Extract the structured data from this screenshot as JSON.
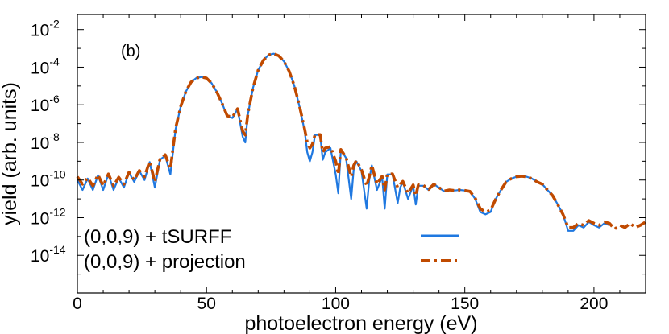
{
  "chart_data": {
    "type": "line",
    "panel_label": "(b)",
    "xlabel": "photoelectron energy (eV)",
    "ylabel": "yield (arb. units)",
    "xlim": [
      0,
      220
    ],
    "ylim_log10": [
      -16,
      -1.2
    ],
    "y_scale": "log",
    "x_ticks": [
      0,
      50,
      100,
      150,
      200
    ],
    "y_ticks": [
      {
        "base": "10",
        "exp": "-2",
        "value": 0.01
      },
      {
        "base": "10",
        "exp": "-4",
        "value": 0.0001
      },
      {
        "base": "10",
        "exp": "-6",
        "value": 1e-06
      },
      {
        "base": "10",
        "exp": "-8",
        "value": 1e-08
      },
      {
        "base": "10",
        "exp": "-10",
        "value": 1e-10
      },
      {
        "base": "10",
        "exp": "-12",
        "value": 1e-12
      },
      {
        "base": "10",
        "exp": "-14",
        "value": 1e-14
      }
    ],
    "grid": false,
    "legend_position": "bottom-left",
    "series": [
      {
        "name": "(0,0,9) + tSURFF",
        "color": "#1f78e0",
        "style": "solid",
        "x": [
          0,
          2,
          4,
          6,
          8,
          10,
          12,
          14,
          16,
          18,
          20,
          22,
          24,
          26,
          28,
          30,
          32,
          34,
          36,
          38,
          40,
          42,
          44,
          46,
          48,
          50,
          52,
          54,
          56,
          58,
          60,
          62,
          64,
          65,
          66,
          68,
          70,
          72,
          74,
          76,
          78,
          80,
          82,
          84,
          86,
          88,
          89,
          90,
          91,
          92,
          94,
          95,
          96,
          98,
          100,
          101,
          102,
          104,
          106,
          107,
          108,
          110,
          112,
          113,
          114,
          116,
          118,
          119,
          120,
          122,
          124,
          125,
          126,
          128,
          130,
          131,
          132,
          134,
          136,
          138,
          140,
          142,
          144,
          146,
          148,
          150,
          152,
          154,
          156,
          158,
          160,
          162,
          164,
          166,
          168,
          170,
          172,
          174,
          176,
          178,
          180,
          182,
          184,
          186,
          188,
          190,
          192,
          194,
          196,
          198,
          200,
          202,
          204,
          206
        ],
        "y": [
          1e-10,
          3e-11,
          1.2e-10,
          3e-11,
          1.8e-10,
          3e-11,
          2e-10,
          3e-11,
          1.3e-10,
          4e-11,
          2.5e-10,
          8e-11,
          3e-10,
          1e-10,
          9e-10,
          4e-11,
          1.2e-09,
          2e-09,
          2e-10,
          5e-08,
          8e-07,
          5e-06,
          1.6e-05,
          2.6e-05,
          3e-05,
          2.6e-05,
          1.4e-05,
          4.8e-06,
          1.2e-06,
          2.5e-07,
          2e-07,
          6e-07,
          2e-08,
          1e-08,
          3e-07,
          8e-06,
          7e-05,
          0.00023,
          0.00045,
          0.00052,
          0.0004,
          0.0002,
          6e-05,
          1e-05,
          8e-07,
          4e-08,
          3e-09,
          1e-09,
          3e-09,
          2.5e-08,
          2.5e-08,
          1.2e-09,
          3e-09,
          5e-09,
          2e-10,
          2e-11,
          4e-09,
          1.5e-09,
          1e-11,
          4e-10,
          1e-09,
          3e-10,
          3e-12,
          1e-10,
          6e-10,
          3e-11,
          1.5e-10,
          3e-12,
          2e-10,
          2e-10,
          6e-12,
          4e-11,
          8e-11,
          1e-11,
          5e-11,
          5e-12,
          5e-11,
          5e-11,
          3e-11,
          6e-11,
          4e-11,
          2.5e-11,
          3e-11,
          2.8e-11,
          3e-11,
          2.8e-11,
          2.5e-11,
          1e-11,
          2e-12,
          1.5e-12,
          2e-12,
          1e-11,
          3e-11,
          8e-11,
          1.2e-10,
          1.5e-10,
          1.6e-10,
          1.5e-10,
          1.2e-10,
          8e-11,
          6e-11,
          3e-11,
          1.5e-11,
          5e-12,
          1.5e-12,
          2e-13,
          2e-13,
          4e-13,
          3e-13,
          6e-13,
          4e-13,
          3e-13,
          5e-13,
          4e-13
        ]
      },
      {
        "name": "(0,0,9) + projection",
        "color": "#c04a00",
        "style": "dash-dot",
        "x": [
          0,
          2,
          4,
          6,
          8,
          10,
          12,
          14,
          16,
          18,
          20,
          22,
          24,
          26,
          28,
          30,
          32,
          34,
          36,
          38,
          40,
          42,
          44,
          46,
          48,
          50,
          52,
          54,
          56,
          58,
          60,
          62,
          64,
          65,
          66,
          68,
          70,
          72,
          74,
          76,
          78,
          80,
          82,
          84,
          86,
          88,
          89,
          90,
          91,
          92,
          94,
          95,
          96,
          98,
          100,
          101,
          102,
          104,
          106,
          107,
          108,
          110,
          112,
          113,
          114,
          116,
          118,
          119,
          120,
          122,
          124,
          125,
          126,
          128,
          130,
          131,
          132,
          134,
          136,
          138,
          140,
          142,
          144,
          146,
          148,
          150,
          152,
          154,
          156,
          158,
          160,
          162,
          164,
          166,
          168,
          170,
          172,
          174,
          176,
          178,
          180,
          182,
          184,
          186,
          188,
          190,
          192,
          194,
          196,
          198,
          200,
          202,
          204,
          206,
          208,
          210,
          212,
          214,
          216,
          218,
          220
        ],
        "y": [
          1.5e-10,
          6e-11,
          1.3e-10,
          5e-11,
          1.9e-10,
          5e-11,
          2.1e-10,
          5e-11,
          1.4e-10,
          6e-11,
          2.6e-10,
          1e-10,
          3.2e-10,
          1.5e-10,
          1e-09,
          8e-11,
          1.3e-09,
          2.2e-09,
          4e-10,
          5.5e-08,
          8.2e-07,
          5.2e-06,
          1.6e-05,
          2.6e-05,
          3e-05,
          2.6e-05,
          1.4e-05,
          4.8e-06,
          1.2e-06,
          2.6e-07,
          2.2e-07,
          6.2e-07,
          4e-08,
          2.5e-08,
          3.2e-07,
          8e-06,
          7e-05,
          0.00023,
          0.00045,
          0.00052,
          0.0004,
          0.0002,
          6e-05,
          1e-05,
          8.5e-07,
          5e-08,
          1e-08,
          5e-09,
          8e-09,
          2.6e-08,
          2.6e-08,
          3e-09,
          5e-09,
          6e-09,
          1e-09,
          2e-10,
          4.2e-09,
          1.6e-09,
          1.5e-10,
          6e-10,
          1.1e-09,
          3.5e-10,
          5e-11,
          1.5e-10,
          6e-10,
          6e-11,
          1.6e-10,
          3e-11,
          2.1e-10,
          2.1e-10,
          4e-11,
          6e-11,
          8.5e-11,
          2e-11,
          5.5e-11,
          1.5e-11,
          5.5e-11,
          5.2e-11,
          3.2e-11,
          6e-11,
          4e-11,
          2.6e-11,
          3e-11,
          2.8e-11,
          3e-11,
          2.8e-11,
          2.5e-11,
          1.1e-11,
          3e-12,
          2e-12,
          2.5e-12,
          1e-11,
          3e-11,
          8e-11,
          1.2e-10,
          1.5e-10,
          1.6e-10,
          1.5e-10,
          1.2e-10,
          8e-11,
          6e-11,
          3e-11,
          1.5e-11,
          5e-12,
          1.5e-12,
          3e-13,
          3e-13,
          5e-13,
          4e-13,
          7e-13,
          5e-13,
          4e-13,
          6e-13,
          5e-13,
          2.5e-13,
          4e-13,
          3e-13,
          5e-13,
          3e-13,
          4e-13,
          6e-13
        ]
      }
    ]
  }
}
